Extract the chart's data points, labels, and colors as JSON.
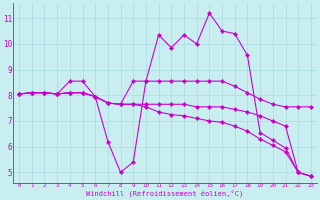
{
  "background_color": "#c8eef0",
  "line_color": "#cc00cc",
  "marker": "D",
  "markersize": 2.2,
  "linewidth": 0.8,
  "xlabel": "Windchill (Refroidissement éolien,°C)",
  "ylabel_ticks": [
    5,
    6,
    7,
    8,
    9,
    10,
    11
  ],
  "xlabel_ticks": [
    0,
    1,
    2,
    3,
    4,
    5,
    6,
    7,
    8,
    9,
    10,
    11,
    12,
    13,
    14,
    15,
    16,
    17,
    18,
    19,
    20,
    21,
    22,
    23
  ],
  "xlim": [
    -0.5,
    23.5
  ],
  "ylim": [
    4.6,
    11.6
  ],
  "grid_color": "#a8dce0",
  "series": [
    [
      8.05,
      8.1,
      8.1,
      8.05,
      8.55,
      8.55,
      7.95,
      6.2,
      5.0,
      5.4,
      8.55,
      10.35,
      9.85,
      10.35,
      10.0,
      11.2,
      10.5,
      10.4,
      9.55,
      6.55,
      6.25,
      5.95,
      5.0,
      4.85
    ],
    [
      8.05,
      8.1,
      8.1,
      8.05,
      8.1,
      8.1,
      7.95,
      7.7,
      7.65,
      8.55,
      8.55,
      8.55,
      8.55,
      8.55,
      8.55,
      8.55,
      8.55,
      8.35,
      8.1,
      7.85,
      7.65,
      7.55,
      7.55,
      7.55
    ],
    [
      8.05,
      8.1,
      8.1,
      8.05,
      8.1,
      8.1,
      7.95,
      7.7,
      7.65,
      7.65,
      7.65,
      7.65,
      7.65,
      7.65,
      7.55,
      7.55,
      7.55,
      7.45,
      7.35,
      7.2,
      7.0,
      6.8,
      5.0,
      4.85
    ],
    [
      8.05,
      8.1,
      8.1,
      8.05,
      8.1,
      8.1,
      7.95,
      7.7,
      7.65,
      7.65,
      7.55,
      7.35,
      7.25,
      7.2,
      7.1,
      7.0,
      6.95,
      6.8,
      6.6,
      6.3,
      6.05,
      5.8,
      5.0,
      4.85
    ]
  ]
}
